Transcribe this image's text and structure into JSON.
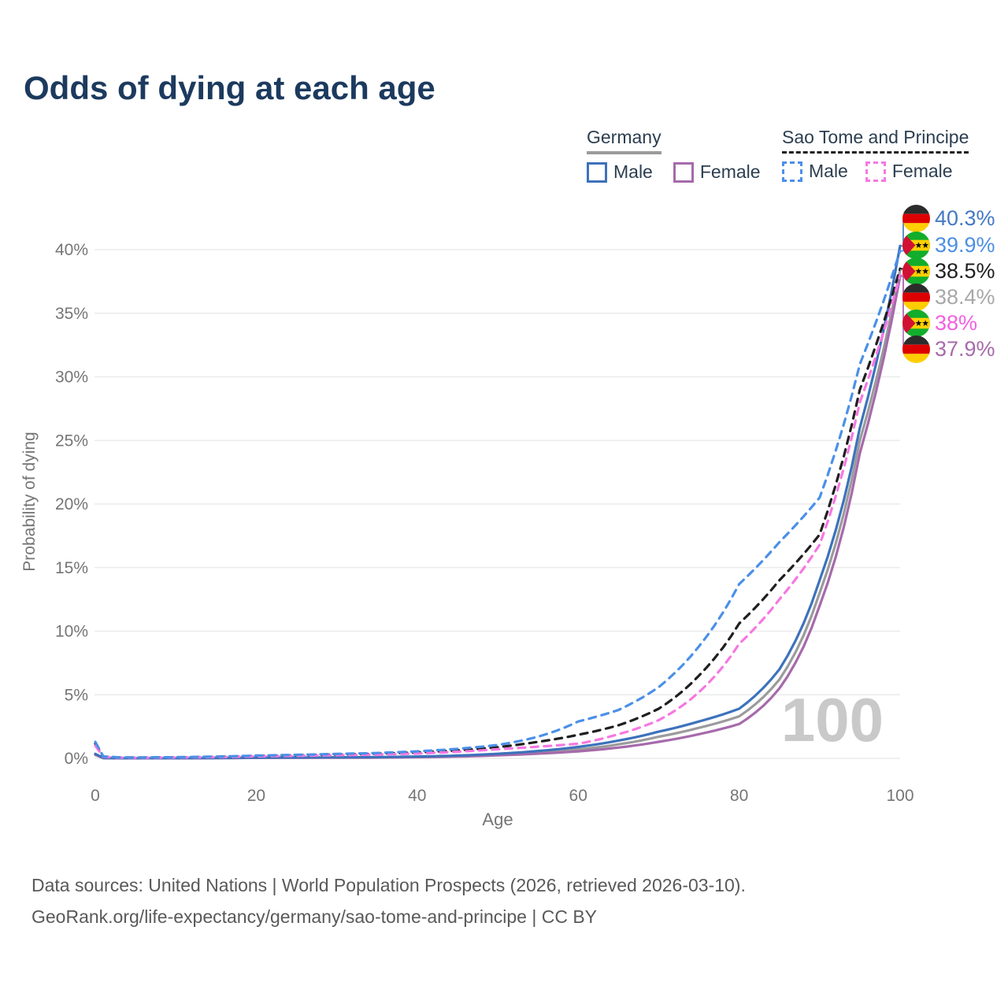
{
  "title": "Odds of dying at each age",
  "legend": {
    "groups": [
      {
        "country": "Germany",
        "line_style": "solid",
        "underline_color": "#9b9b9b",
        "items": [
          {
            "label": "Male",
            "color": "#3d72bb"
          },
          {
            "label": "Female",
            "color": "#a66aab"
          }
        ]
      },
      {
        "country": "Sao Tome and Principe",
        "line_style": "dashed",
        "underline_color": "#1f1f1f",
        "items": [
          {
            "label": "Male",
            "color": "#4b90e8"
          },
          {
            "label": "Female",
            "color": "#f678e2"
          }
        ]
      }
    ]
  },
  "chart_data": {
    "type": "line",
    "title": "Odds of dying at each age",
    "xlabel": "Age",
    "ylabel": "Probability of dying",
    "xlim": [
      0,
      100
    ],
    "ylim": [
      0,
      40
    ],
    "grid": true,
    "x_ticks": [
      "0",
      "20",
      "40",
      "60",
      "80",
      "100"
    ],
    "y_ticks": [
      "0%",
      "5%",
      "10%",
      "15%",
      "20%",
      "25%",
      "30%",
      "35%",
      "40%"
    ],
    "x": [
      0,
      1,
      3,
      5,
      10,
      15,
      20,
      25,
      30,
      35,
      40,
      45,
      50,
      55,
      60,
      65,
      70,
      75,
      80,
      85,
      90,
      95,
      100
    ],
    "series": [
      {
        "name": "Germany Male",
        "country": "Germany",
        "sex": "Male",
        "line_style": "solid",
        "color": "#3d72bb",
        "flag": "germany",
        "label": "40.3%",
        "label_color": "#4478c4",
        "values": [
          0.35,
          0.03,
          0.012,
          0.01,
          0.01,
          0.03,
          0.06,
          0.07,
          0.08,
          0.1,
          0.14,
          0.22,
          0.36,
          0.58,
          0.9,
          1.4,
          2.1,
          2.9,
          3.9,
          7.0,
          14.0,
          26.0,
          40.3
        ]
      },
      {
        "name": "Sao Tome and Principe Male",
        "country": "Sao Tome and Principe",
        "sex": "Male",
        "line_style": "dashed",
        "color": "#4b90e8",
        "flag": "sao-tome",
        "label": "39.9%",
        "label_color": "#4b8fe2",
        "values": [
          1.3,
          0.15,
          0.08,
          0.07,
          0.09,
          0.14,
          0.22,
          0.28,
          0.35,
          0.42,
          0.55,
          0.75,
          1.05,
          1.7,
          2.9,
          3.8,
          5.6,
          8.8,
          13.7,
          17.0,
          20.5,
          31.0,
          39.9
        ]
      },
      {
        "name": "Sao Tome and Principe Both sexes",
        "country": "Sao Tome and Principe",
        "sex": "Both",
        "line_style": "dashed",
        "color": "#1f1f1f",
        "flag": "sao-tome",
        "label": "38.5%",
        "label_color": "#1f1f1f",
        "values": [
          1.15,
          0.13,
          0.07,
          0.06,
          0.08,
          0.12,
          0.19,
          0.24,
          0.3,
          0.36,
          0.47,
          0.63,
          0.88,
          1.3,
          1.85,
          2.6,
          3.9,
          6.5,
          10.6,
          14.0,
          17.6,
          29.0,
          38.5
        ]
      },
      {
        "name": "Germany Both sexes",
        "country": "Germany",
        "sex": "Both",
        "line_style": "solid",
        "color": "#9b9b9b",
        "flag": "germany",
        "label": "38.4%",
        "label_color": "#a8a8a8",
        "values": [
          0.32,
          0.025,
          0.01,
          0.009,
          0.009,
          0.025,
          0.05,
          0.055,
          0.065,
          0.085,
          0.12,
          0.18,
          0.3,
          0.47,
          0.7,
          1.1,
          1.7,
          2.4,
          3.3,
          6.2,
          13.0,
          25.0,
          38.4
        ]
      },
      {
        "name": "Sao Tome and Principe Female",
        "country": "Sao Tome and Principe",
        "sex": "Female",
        "line_style": "dashed",
        "color": "#f678e2",
        "flag": "sao-tome",
        "label": "38%",
        "label_color": "#f45fe1",
        "values": [
          1.0,
          0.11,
          0.06,
          0.05,
          0.07,
          0.1,
          0.16,
          0.2,
          0.25,
          0.3,
          0.38,
          0.52,
          0.72,
          0.92,
          1.15,
          1.9,
          3.0,
          5.2,
          9.0,
          12.5,
          16.8,
          28.0,
          38.0
        ]
      },
      {
        "name": "Germany Female",
        "country": "Germany",
        "sex": "Female",
        "line_style": "solid",
        "color": "#a66aab",
        "flag": "germany",
        "label": "37.9%",
        "label_color": "#a66aab",
        "values": [
          0.28,
          0.02,
          0.009,
          0.008,
          0.008,
          0.02,
          0.04,
          0.045,
          0.05,
          0.06,
          0.09,
          0.14,
          0.24,
          0.37,
          0.55,
          0.85,
          1.3,
          1.9,
          2.7,
          5.5,
          12.0,
          24.0,
          37.9
        ]
      }
    ],
    "hover_age_watermark": "100"
  },
  "colors": {
    "title": "#1c3a5e",
    "axis_text": "#757575",
    "gridline": "#ebebeb",
    "watermark": "#c9c9c9",
    "footer_text": "#595959"
  },
  "footer": {
    "line1": "Data sources: United Nations | World Population Prospects (2026, retrieved 2026-03-10).",
    "line2": "GeoRank.org/life-expectancy/germany/sao-tome-and-principe | CC BY"
  }
}
